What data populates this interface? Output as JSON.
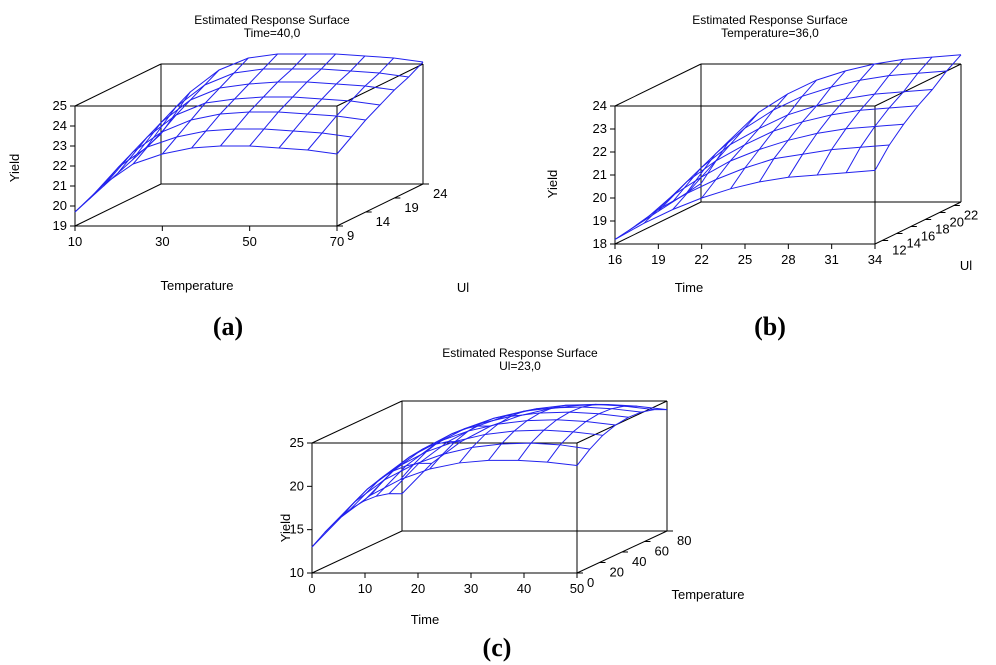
{
  "colors": {
    "mesh": "#2222ee",
    "box": "#000000",
    "background": "#ffffff"
  },
  "chart_data": [
    {
      "id": "a",
      "type": "surface",
      "caption_letter": "a",
      "title": "Estimated Response Surface",
      "subtitle": "Time=40,0",
      "xlabel": "Temperature",
      "ylabel": "Ul",
      "zlabel": "Yield",
      "x_ticks": [
        10,
        30,
        50,
        70
      ],
      "y_ticks": [
        9,
        14,
        19,
        24
      ],
      "z_ticks": [
        19,
        20,
        21,
        22,
        23,
        24,
        25
      ],
      "xlim": [
        10,
        70
      ],
      "ylim": [
        9,
        24
      ],
      "zlim": [
        19,
        25
      ],
      "grid_x": [
        10,
        16.7,
        23.3,
        30,
        36.7,
        43.3,
        50,
        56.7,
        63.3,
        70
      ],
      "grid_y": [
        9,
        11.5,
        14,
        16.5,
        19,
        21.5,
        24
      ],
      "z": [
        [
          19.7,
          21.1,
          22.1,
          22.6,
          22.9,
          23.0,
          23.0,
          22.9,
          22.8,
          22.6
        ],
        [
          20.0,
          21.6,
          22.6,
          23.1,
          23.4,
          23.5,
          23.5,
          23.4,
          23.3,
          23.1
        ],
        [
          20.3,
          22.0,
          23.0,
          23.6,
          23.9,
          24.0,
          24.0,
          23.9,
          23.8,
          23.6
        ],
        [
          20.6,
          22.4,
          23.5,
          24.1,
          24.3,
          24.4,
          24.4,
          24.3,
          24.2,
          24.0
        ],
        [
          20.9,
          22.8,
          23.9,
          24.5,
          24.7,
          24.8,
          24.8,
          24.7,
          24.6,
          24.4
        ],
        [
          21.2,
          23.2,
          24.3,
          24.9,
          25.1,
          25.1,
          25.1,
          25.0,
          24.9,
          24.7
        ],
        [
          21.5,
          23.6,
          24.7,
          25.3,
          25.5,
          25.5,
          25.5,
          25.4,
          25.3,
          25.1
        ]
      ]
    },
    {
      "id": "b",
      "type": "surface",
      "caption_letter": "b",
      "title": "Estimated Response Surface",
      "subtitle": "Temperature=36,0",
      "xlabel": "Time",
      "ylabel": "Ul",
      "zlabel": "Yield",
      "x_ticks": [
        16,
        19,
        22,
        25,
        28,
        31,
        34
      ],
      "y_ticks": [
        12,
        14,
        16,
        18,
        20,
        22
      ],
      "z_ticks": [
        18,
        19,
        20,
        21,
        22,
        23,
        24
      ],
      "xlim": [
        16,
        34
      ],
      "ylim": [
        11,
        23
      ],
      "zlim": [
        18,
        24
      ],
      "grid_x": [
        16,
        18,
        20,
        22,
        24,
        26,
        28,
        30,
        32,
        34
      ],
      "grid_y": [
        11,
        13,
        15,
        17,
        19,
        21,
        23
      ],
      "z": [
        [
          18.2,
          18.9,
          19.5,
          20.0,
          20.4,
          20.7,
          20.9,
          21.0,
          21.1,
          21.2
        ],
        [
          18.3,
          19.2,
          19.9,
          20.5,
          21.0,
          21.4,
          21.6,
          21.8,
          21.9,
          22.0
        ],
        [
          18.4,
          19.5,
          20.3,
          21.0,
          21.5,
          21.9,
          22.2,
          22.4,
          22.5,
          22.6
        ],
        [
          18.5,
          19.8,
          20.7,
          21.4,
          22.0,
          22.4,
          22.7,
          22.9,
          23.0,
          23.1
        ],
        [
          18.6,
          20.1,
          21.1,
          21.8,
          22.4,
          22.8,
          23.1,
          23.3,
          23.4,
          23.5
        ],
        [
          18.7,
          20.4,
          21.5,
          22.3,
          22.9,
          23.3,
          23.6,
          23.8,
          23.9,
          24.0
        ],
        [
          18.8,
          20.7,
          21.9,
          22.7,
          23.3,
          23.7,
          24.0,
          24.2,
          24.3,
          24.4
        ]
      ]
    },
    {
      "id": "c",
      "type": "surface",
      "caption_letter": "c",
      "title": "Estimated Response Surface",
      "subtitle": "Ul=23,0",
      "xlabel": "Time",
      "ylabel": "Temperature",
      "zlabel": "Yield",
      "x_ticks": [
        0,
        10,
        20,
        30,
        40,
        50
      ],
      "y_ticks": [
        0,
        20,
        40,
        60,
        80
      ],
      "z_ticks": [
        10,
        15,
        20,
        25
      ],
      "xlim": [
        0,
        50
      ],
      "ylim": [
        0,
        80
      ],
      "zlim": [
        10,
        25
      ],
      "grid_x": [
        0,
        5.6,
        11.1,
        16.7,
        22.2,
        27.8,
        33.3,
        38.9,
        44.4,
        50
      ],
      "grid_y": [
        0,
        11.4,
        22.9,
        34.3,
        45.7,
        57.1,
        68.6,
        80
      ],
      "z": [
        [
          13.0,
          16.5,
          19.0,
          20.8,
          22.0,
          22.7,
          23.0,
          23.0,
          22.8,
          22.4
        ],
        [
          14.0,
          17.5,
          20.0,
          21.8,
          23.0,
          23.8,
          24.2,
          24.3,
          24.1,
          23.6
        ],
        [
          14.8,
          18.3,
          20.8,
          22.6,
          23.8,
          24.6,
          25.0,
          25.1,
          24.9,
          24.5
        ],
        [
          15.3,
          18.8,
          21.3,
          23.1,
          24.3,
          25.1,
          25.5,
          25.6,
          25.4,
          25.0
        ],
        [
          15.5,
          19.0,
          21.5,
          23.3,
          24.5,
          25.3,
          25.7,
          25.8,
          25.6,
          25.2
        ],
        [
          15.4,
          18.9,
          21.4,
          23.2,
          24.4,
          25.2,
          25.6,
          25.7,
          25.5,
          25.1
        ],
        [
          15.0,
          18.5,
          21.0,
          22.8,
          24.0,
          24.8,
          25.2,
          25.3,
          25.1,
          24.7
        ],
        [
          14.3,
          17.8,
          20.3,
          22.1,
          23.3,
          24.1,
          24.5,
          24.6,
          24.4,
          24.0
        ]
      ]
    }
  ]
}
